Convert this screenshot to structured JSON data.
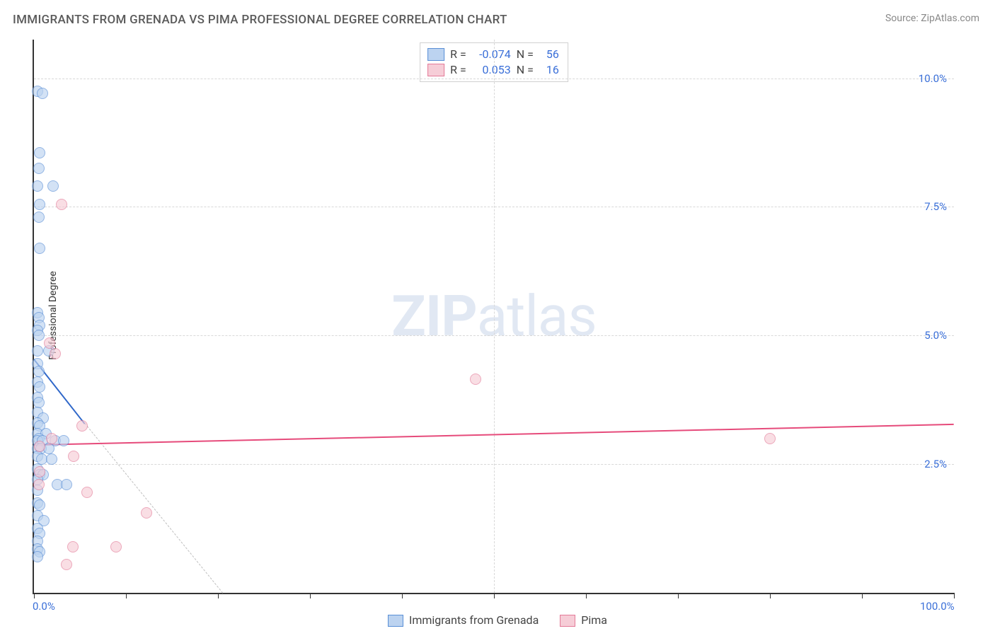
{
  "title": "IMMIGRANTS FROM GRENADA VS PIMA PROFESSIONAL DEGREE CORRELATION CHART",
  "source_label": "Source: ZipAtlas.com",
  "ylabel": "Professional Degree",
  "watermark": {
    "bold": "ZIP",
    "rest": "atlas"
  },
  "chart": {
    "type": "scatter",
    "xlim": [
      0,
      100
    ],
    "ylim": [
      0,
      10.75
    ],
    "y_gridlines": [
      2.5,
      5.0,
      7.5,
      10.0
    ],
    "y_tick_labels": [
      "2.5%",
      "5.0%",
      "7.5%",
      "10.0%"
    ],
    "x_major_ticks": [
      0,
      100
    ],
    "x_major_labels": [
      "0.0%",
      "100.0%"
    ],
    "x_minor_ticks": [
      10,
      20,
      30,
      40,
      50,
      60,
      70,
      80,
      90
    ],
    "x_vgrid": [
      50
    ],
    "background_color": "#ffffff",
    "grid_color": "#d8d8d8",
    "axis_color": "#333333",
    "marker_radius": 8,
    "marker_border_width": 1.5,
    "series": [
      {
        "name": "Immigrants from Grenada",
        "fill": "#bcd3f0",
        "stroke": "#5a8fd6",
        "fill_opacity": 0.65,
        "R": "-0.074",
        "N": "56",
        "trend": {
          "x1": 0,
          "y1": 4.55,
          "x2": 5.5,
          "y2": 3.3,
          "color": "#2f67c9",
          "width": 2
        },
        "trend_dashed_ext": {
          "x1": 5.5,
          "y1": 3.3,
          "x2": 20.5,
          "y2": 0,
          "color": "#bfbfbf"
        },
        "points": [
          [
            0.4,
            9.75
          ],
          [
            0.9,
            9.7
          ],
          [
            0.6,
            8.55
          ],
          [
            0.5,
            8.25
          ],
          [
            0.4,
            7.9
          ],
          [
            2.1,
            7.9
          ],
          [
            0.6,
            7.55
          ],
          [
            0.5,
            7.3
          ],
          [
            0.6,
            6.7
          ],
          [
            0.4,
            5.45
          ],
          [
            0.5,
            5.35
          ],
          [
            0.6,
            5.2
          ],
          [
            0.4,
            5.1
          ],
          [
            0.5,
            5.0
          ],
          [
            0.4,
            4.7
          ],
          [
            1.6,
            4.7
          ],
          [
            0.4,
            4.45
          ],
          [
            0.5,
            4.3
          ],
          [
            0.4,
            4.1
          ],
          [
            0.6,
            4.0
          ],
          [
            0.4,
            3.8
          ],
          [
            0.55,
            3.7
          ],
          [
            0.4,
            3.5
          ],
          [
            1.0,
            3.4
          ],
          [
            0.4,
            3.3
          ],
          [
            0.6,
            3.25
          ],
          [
            0.4,
            3.1
          ],
          [
            1.3,
            3.1
          ],
          [
            0.5,
            3.0
          ],
          [
            0.4,
            2.95
          ],
          [
            0.9,
            2.95
          ],
          [
            2.3,
            2.95
          ],
          [
            3.2,
            2.95
          ],
          [
            0.4,
            2.8
          ],
          [
            0.8,
            2.8
          ],
          [
            1.6,
            2.8
          ],
          [
            0.4,
            2.65
          ],
          [
            0.85,
            2.6
          ],
          [
            1.9,
            2.6
          ],
          [
            0.4,
            2.4
          ],
          [
            0.6,
            2.3
          ],
          [
            1.0,
            2.3
          ],
          [
            0.4,
            2.2
          ],
          [
            2.5,
            2.1
          ],
          [
            3.5,
            2.1
          ],
          [
            0.4,
            2.0
          ],
          [
            0.4,
            1.75
          ],
          [
            0.6,
            1.7
          ],
          [
            0.4,
            1.5
          ],
          [
            1.1,
            1.4
          ],
          [
            0.4,
            1.25
          ],
          [
            0.6,
            1.15
          ],
          [
            0.4,
            1.0
          ],
          [
            0.4,
            0.85
          ],
          [
            0.6,
            0.8
          ],
          [
            0.4,
            0.7
          ]
        ]
      },
      {
        "name": "Pima",
        "fill": "#f6cdd7",
        "stroke": "#e37a98",
        "fill_opacity": 0.65,
        "R": "0.053",
        "N": "16",
        "trend": {
          "x1": 0,
          "y1": 2.88,
          "x2": 100,
          "y2": 3.28,
          "color": "#e64b7b",
          "width": 2
        },
        "points": [
          [
            3.0,
            7.55
          ],
          [
            1.7,
            4.85
          ],
          [
            2.3,
            4.65
          ],
          [
            48.0,
            4.15
          ],
          [
            5.2,
            3.25
          ],
          [
            1.9,
            3.0
          ],
          [
            80.0,
            3.0
          ],
          [
            0.6,
            2.85
          ],
          [
            4.3,
            2.65
          ],
          [
            0.6,
            2.35
          ],
          [
            0.5,
            2.1
          ],
          [
            5.8,
            1.95
          ],
          [
            12.2,
            1.55
          ],
          [
            4.2,
            0.9
          ],
          [
            8.9,
            0.9
          ],
          [
            3.5,
            0.55
          ]
        ]
      }
    ]
  },
  "legend_top": {
    "r_label": "R =",
    "n_label": "N ="
  },
  "legend_bottom": {
    "items": [
      "Immigrants from Grenada",
      "Pima"
    ]
  }
}
